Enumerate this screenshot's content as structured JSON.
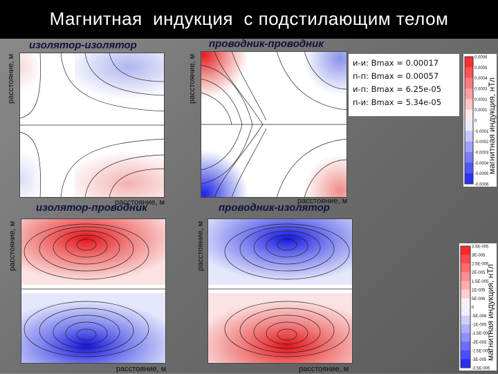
{
  "title": "Магнитная  индукция  с подстилающим телом",
  "colors": {
    "red": "#e8141e",
    "blue": "#1e1ee6",
    "white": "#ffffff",
    "background": "#7a7a7a"
  },
  "panels": [
    {
      "id": "ii",
      "title": "изолятор-изолятор",
      "ylabel": "расстояние, м",
      "xlabel": "расстояние, м",
      "pattern": "weak"
    },
    {
      "id": "pp",
      "title": "проводник-проводник",
      "ylabel": "расстояние, м",
      "xlabel": "расстояние, м",
      "pattern": "strong-diagonal"
    },
    {
      "id": "ip",
      "title": "изолятор-проводник",
      "ylabel": "расстояние, м",
      "xlabel": "расстояние, м",
      "pattern": "red-top-blue-bottom"
    },
    {
      "id": "pi",
      "title": "проводник-изолятор",
      "ylabel": "расстояние, м",
      "xlabel": "расстояние, м",
      "pattern": "blue-top-red-bottom"
    }
  ],
  "bmax_info": [
    "и-и: Bmax = 0.00017",
    "п-п: Bmax = 0.00057",
    "и-п: Bmax = 6.25e-05",
    "п-и: Bmax = 5.34e-05"
  ],
  "colorbar_top": {
    "label": "магнитная индукция, нТл",
    "ticks": [
      "0.0006",
      "0.0005",
      "0.0004",
      "0.0003",
      "0.0002",
      "0.0001",
      "0",
      "-0.0001",
      "-0.0002",
      "-0.0003",
      "-0.0004",
      "-0.0005",
      "-0.0006"
    ]
  },
  "colorbar_bottom": {
    "label": "магнитная индукция, нТл",
    "ticks": [
      "3.5E-005",
      "3E-005",
      "2.5E-005",
      "2E-005",
      "1.5E-005",
      "1E-005",
      "5E-006",
      "0",
      "-5E-006",
      "-1E-005",
      "-1.5E-005",
      "-2E-005",
      "-2.5E-005",
      "-3E-005",
      "-3.5E-005"
    ]
  }
}
